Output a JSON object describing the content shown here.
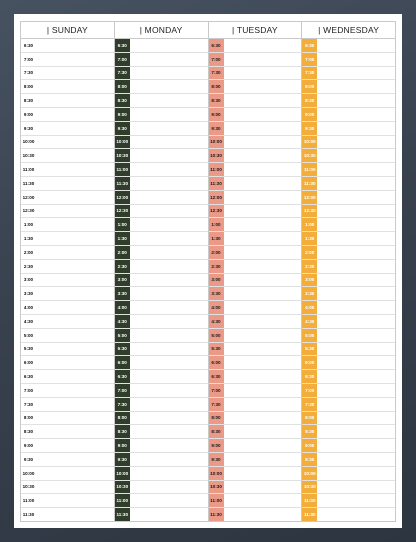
{
  "planner": {
    "days": [
      {
        "name": "| SUNDAY",
        "accent": "#ffffff",
        "text_color": "#111111"
      },
      {
        "name": "| MONDAY",
        "accent": "#2f3d2a",
        "text_color": "#ffffff"
      },
      {
        "name": "| TUESDAY",
        "accent": "#ec9a88",
        "text_color": "#1a1a1a"
      },
      {
        "name": "| WEDNESDAY",
        "accent": "#f3ad3b",
        "text_color": "#ffffff"
      }
    ],
    "times": [
      "6:30",
      "7:00",
      "7:30",
      "8:00",
      "8:30",
      "9:00",
      "9:30",
      "10:00",
      "10:30",
      "11:00",
      "11:30",
      "12:00",
      "12:30",
      "1:00",
      "1:30",
      "2:00",
      "2:30",
      "3:00",
      "3:30",
      "4:00",
      "4:30",
      "5:00",
      "5:30",
      "6:00",
      "6:30",
      "7:00",
      "7:30",
      "8:00",
      "8:30",
      "9:00",
      "9:30",
      "10:00",
      "10:30",
      "11:00",
      "11:30"
    ]
  }
}
